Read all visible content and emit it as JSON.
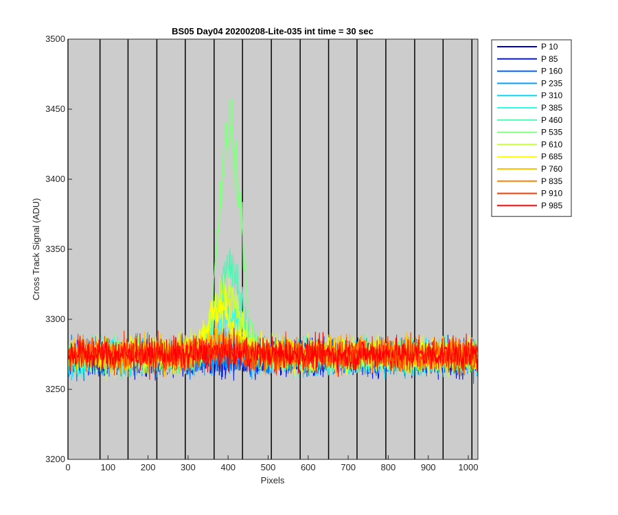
{
  "chart_data": {
    "type": "line",
    "title": "BS05 Day04 20200208-Lite-035 int time = 30 sec",
    "xlabel": "Pixels",
    "ylabel": "Cross Track Signal (ADU)",
    "xlim": [
      0,
      1024
    ],
    "ylim": [
      3200,
      3500
    ],
    "x_ticks": [
      0,
      100,
      200,
      300,
      400,
      500,
      600,
      700,
      800,
      900,
      1000
    ],
    "y_ticks": [
      3200,
      3250,
      3300,
      3350,
      3400,
      3450,
      3500
    ],
    "vertical_lines_x": [
      0,
      80,
      150,
      222,
      293,
      365,
      436,
      508,
      580,
      651,
      722,
      794,
      866,
      937,
      1009
    ],
    "background_color": "#cccccc",
    "legend_placement": "outside-top-right",
    "series": [
      {
        "name": "P 10",
        "color": "#0000bd",
        "baseline": 3272,
        "peak_center": 400,
        "peak_width": 40,
        "peak_height": 0
      },
      {
        "name": "P 85",
        "color": "#0014ff",
        "baseline": 3272,
        "peak_center": 400,
        "peak_width": 40,
        "peak_height": 0
      },
      {
        "name": "P 160",
        "color": "#0060ff",
        "baseline": 3272,
        "peak_center": 400,
        "peak_width": 40,
        "peak_height": 0
      },
      {
        "name": "P 235",
        "color": "#00a0ff",
        "baseline": 3273,
        "peak_center": 400,
        "peak_width": 45,
        "peak_height": 2
      },
      {
        "name": "P 310",
        "color": "#00dcff",
        "baseline": 3273,
        "peak_center": 400,
        "peak_width": 45,
        "peak_height": 10
      },
      {
        "name": "P 385",
        "color": "#28ffe6",
        "baseline": 3273,
        "peak_center": 405,
        "peak_width": 45,
        "peak_height": 30
      },
      {
        "name": "P 460",
        "color": "#50f5b4",
        "baseline": 3274,
        "peak_center": 405,
        "peak_width": 40,
        "peak_height": 65
      },
      {
        "name": "P 535",
        "color": "#82ff82",
        "baseline": 3274,
        "peak_center": 405,
        "peak_width": 38,
        "peak_height": 160
      },
      {
        "name": "P 610",
        "color": "#c8ff3c",
        "baseline": 3274,
        "peak_center": 395,
        "peak_width": 50,
        "peak_height": 45
      },
      {
        "name": "P 685",
        "color": "#ffff00",
        "baseline": 3275,
        "peak_center": 380,
        "peak_width": 50,
        "peak_height": 32
      },
      {
        "name": "P 760",
        "color": "#ffc000",
        "baseline": 3275,
        "peak_center": 380,
        "peak_width": 55,
        "peak_height": 10
      },
      {
        "name": "P 835",
        "color": "#ff8000",
        "baseline": 3275,
        "peak_center": 380,
        "peak_width": 60,
        "peak_height": 4
      },
      {
        "name": "P 910",
        "color": "#ff3a00",
        "baseline": 3275,
        "peak_center": 380,
        "peak_width": 60,
        "peak_height": 2
      },
      {
        "name": "P 985",
        "color": "#ff0000",
        "baseline": 3275,
        "peak_center": 380,
        "peak_width": 60,
        "peak_height": 1
      }
    ]
  }
}
